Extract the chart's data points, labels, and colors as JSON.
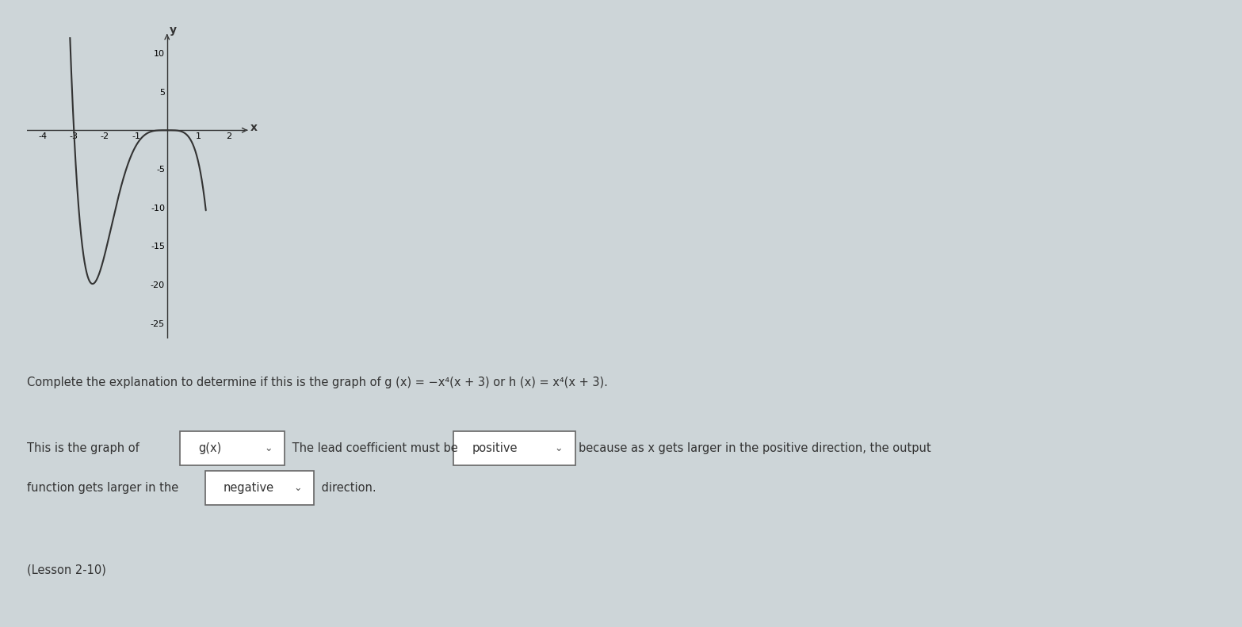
{
  "bg_color": "#cdd5d8",
  "graph_bg": "#cdd5d8",
  "curve_color": "#333333",
  "axis_color": "#333333",
  "xlim": [
    -4.5,
    2.5
  ],
  "ylim": [
    -27,
    12
  ],
  "xticks": [
    -4,
    -3,
    -2,
    -1,
    1,
    2
  ],
  "yticks": [
    -25,
    -20,
    -15,
    -10,
    -5,
    5,
    10
  ],
  "xlabel": "x",
  "ylabel": "y",
  "title_text": "Complete the explanation to determine if this is the graph of g (x) = −x⁴(x + 3) or h (x) = x⁴(x + 3).",
  "line1_text": "This is the graph of",
  "box1_text": "g(x)",
  "middle_text": " The lead coefficient must be",
  "box2_text": "positive",
  "right_text": "because as x gets larger in the positive direction, the output",
  "line2_prefix": "function gets larger in the",
  "box3_text": "negative",
  "line2_suffix": " direction.",
  "lesson_text": "(Lesson 2-10)"
}
